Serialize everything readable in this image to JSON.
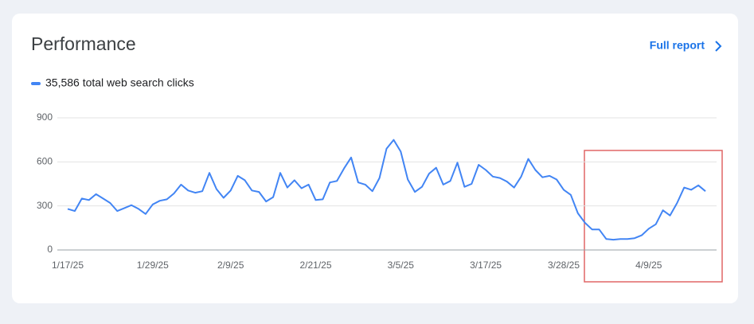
{
  "header_link": "Full report",
  "chart_data": {
    "type": "line",
    "title": "Performance",
    "categories": [
      "1/17/25",
      null,
      null,
      null,
      null,
      null,
      null,
      null,
      null,
      null,
      null,
      null,
      "1/29/25",
      null,
      null,
      null,
      null,
      null,
      null,
      null,
      null,
      null,
      null,
      "2/9/25",
      null,
      null,
      null,
      null,
      null,
      null,
      null,
      null,
      null,
      null,
      null,
      "2/21/25",
      null,
      null,
      null,
      null,
      null,
      null,
      null,
      null,
      null,
      null,
      null,
      "3/5/25",
      null,
      null,
      null,
      null,
      null,
      null,
      null,
      null,
      null,
      null,
      null,
      "3/17/25",
      null,
      null,
      null,
      null,
      null,
      null,
      null,
      null,
      null,
      null,
      "3/28/25",
      null,
      null,
      null,
      null,
      null,
      null,
      null,
      null,
      null,
      null,
      null,
      "4/9/25",
      null,
      null,
      null,
      null,
      null,
      null,
      null,
      null
    ],
    "series": [
      {
        "name": "35,586 total web search clicks",
        "color": "#4285f4",
        "values": [
          280,
          265,
          350,
          340,
          380,
          350,
          320,
          265,
          285,
          305,
          280,
          245,
          310,
          335,
          345,
          385,
          445,
          405,
          390,
          400,
          525,
          415,
          355,
          405,
          505,
          475,
          405,
          395,
          330,
          360,
          525,
          425,
          475,
          420,
          445,
          340,
          345,
          460,
          470,
          555,
          630,
          460,
          445,
          400,
          490,
          690,
          750,
          670,
          480,
          395,
          430,
          520,
          560,
          445,
          470,
          595,
          430,
          450,
          580,
          545,
          500,
          490,
          465,
          425,
          500,
          620,
          545,
          495,
          505,
          480,
          410,
          375,
          250,
          185,
          140,
          140,
          75,
          70,
          75,
          75,
          80,
          100,
          145,
          175,
          270,
          235,
          320,
          425,
          410,
          440,
          400
        ]
      }
    ],
    "ylim": [
      0,
      900
    ],
    "yticks": [
      0,
      300,
      600,
      900
    ],
    "grid": true
  }
}
